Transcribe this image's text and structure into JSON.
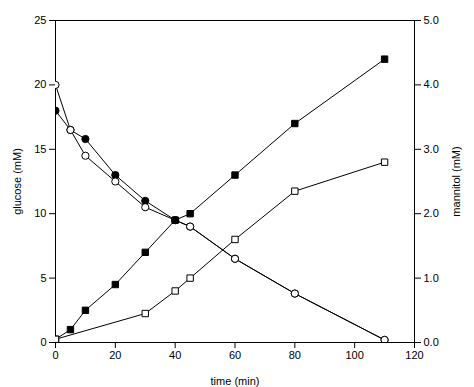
{
  "chart_data": {
    "type": "line",
    "xlabel": "time (min)",
    "ylabel": "glucose (mM)",
    "y2label": "mannitol (mM)",
    "xlim": [
      0,
      120
    ],
    "xticks": [
      0,
      20,
      40,
      60,
      80,
      100,
      120
    ],
    "ylim": [
      0,
      25
    ],
    "yticks": [
      0,
      5,
      10,
      15,
      20,
      25
    ],
    "y2lim": [
      0.0,
      5.0
    ],
    "y2ticks": [
      {
        "value": 0.0,
        "label": "0.0"
      },
      {
        "value": 1.0,
        "label": "1.0"
      },
      {
        "value": 2.0,
        "label": "2.0"
      },
      {
        "value": 3.0,
        "label": "3.0"
      },
      {
        "value": 4.0,
        "label": "4.0"
      },
      {
        "value": 5.0,
        "label": "5.0"
      }
    ],
    "grid": false,
    "series": [
      {
        "x": [
          0,
          5,
          10,
          20,
          30,
          40,
          45,
          60,
          80,
          110
        ],
        "values": [
          18.0,
          16.5,
          15.8,
          13.0,
          11.0,
          9.5,
          9.0,
          6.5,
          3.8,
          0.2
        ],
        "color": "#000000",
        "marker": "circle",
        "axis": "y"
      },
      {
        "x": [
          0,
          5,
          10,
          20,
          30,
          40,
          45,
          60,
          80,
          110
        ],
        "values": [
          20.0,
          16.5,
          14.5,
          12.5,
          10.5,
          9.5,
          9.0,
          6.5,
          3.8,
          0.2
        ],
        "color": "#000000",
        "marker": "circle_open",
        "axis": "y"
      },
      {
        "x": [
          0,
          5,
          10,
          20,
          30,
          40,
          45,
          60,
          80,
          110
        ],
        "values": [
          0.05,
          0.2,
          0.5,
          0.9,
          1.4,
          1.9,
          2.0,
          2.6,
          3.4,
          4.4
        ],
        "color": "#000000",
        "marker": "square",
        "axis": "y2"
      },
      {
        "x": [
          0,
          30,
          40,
          45,
          60,
          80,
          110
        ],
        "values": [
          0.05,
          0.45,
          0.8,
          1.0,
          1.6,
          2.35,
          2.8
        ],
        "color": "#000000",
        "marker": "square_open",
        "axis": "y2"
      }
    ]
  }
}
